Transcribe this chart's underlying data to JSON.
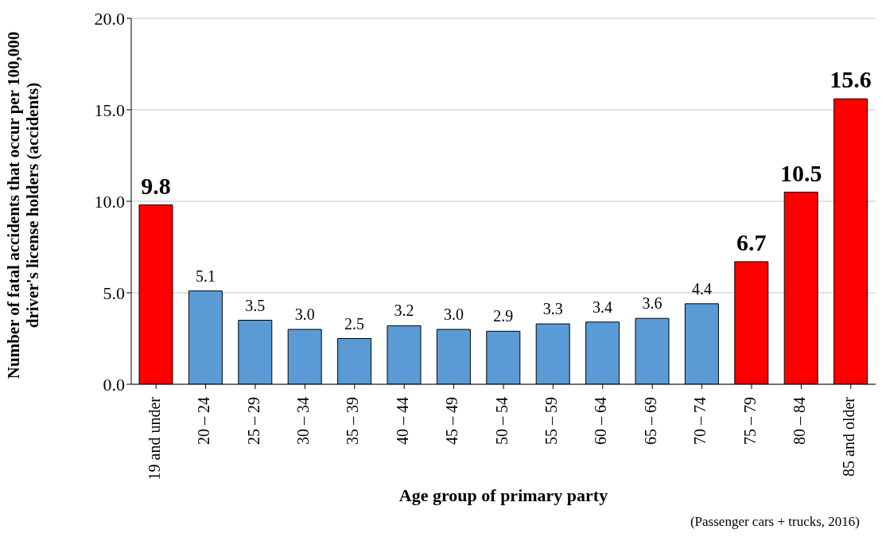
{
  "chart_data": {
    "type": "bar",
    "xlabel": "Age group of primary party",
    "ylabel": "Number of fatal accidents that occur per 100,000 driver's license holders (accidents)",
    "categories": [
      "19 and under",
      "20 – 24",
      "25 – 29",
      "30 – 34",
      "35 – 39",
      "40 – 44",
      "45 – 49",
      "50 – 54",
      "55 – 59",
      "60 – 64",
      "65 – 69",
      "70 – 74",
      "75 – 79",
      "80 – 84",
      "85 and older"
    ],
    "values": [
      9.8,
      5.1,
      3.5,
      3.0,
      2.5,
      3.2,
      3.0,
      2.9,
      3.3,
      3.4,
      3.6,
      4.4,
      6.7,
      10.5,
      15.6
    ],
    "colors": [
      "#ff0000",
      "#5b9bd5",
      "#5b9bd5",
      "#5b9bd5",
      "#5b9bd5",
      "#5b9bd5",
      "#5b9bd5",
      "#5b9bd5",
      "#5b9bd5",
      "#5b9bd5",
      "#5b9bd5",
      "#5b9bd5",
      "#ff0000",
      "#ff0000",
      "#ff0000"
    ],
    "ylim": [
      0,
      20
    ],
    "yticks": [
      {
        "value": 0,
        "label": "0.0"
      },
      {
        "value": 5,
        "label": "5.0"
      },
      {
        "value": 10,
        "label": "10.0"
      },
      {
        "value": 15,
        "label": "15.0"
      },
      {
        "value": 20,
        "label": "20.0"
      }
    ],
    "grid": "y",
    "value_labels": [
      "9.8",
      "5.1",
      "3.5",
      "3.0",
      "2.5",
      "3.2",
      "3.0",
      "2.9",
      "3.3",
      "3.4",
      "3.6",
      "4.4",
      "6.7",
      "10.5",
      "15.6"
    ],
    "annotations": [
      "(Passenger cars + trucks, 2016)"
    ]
  }
}
